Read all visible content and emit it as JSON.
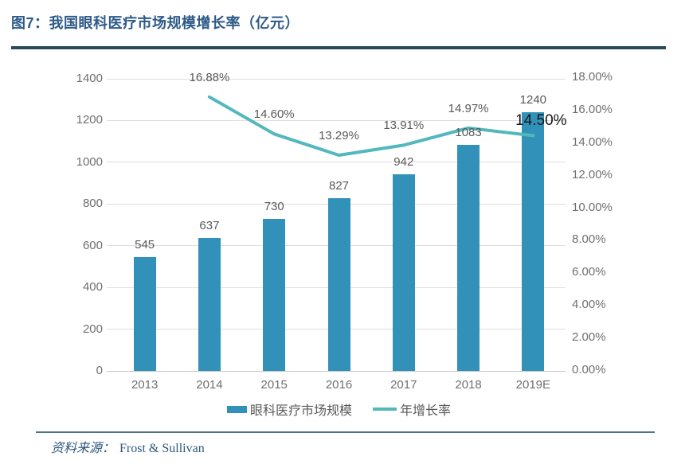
{
  "figure": {
    "title": "图7：我国眼科医疗市场规模增长率（亿元）",
    "source_label": "资料来源：",
    "source_value": "Frost & Sullivan"
  },
  "colors": {
    "title": "#2E5A88",
    "top_rule": "#264B5D",
    "bar": "#3191B9",
    "line": "#53B8BD",
    "grid": "#DEDEDE",
    "axis": "#C6C6C6",
    "tick_label": "#6F6F6F",
    "data_label": "#595959",
    "highlight_label": "#161616",
    "source_text": "#2E577A",
    "source_rule": "#4F7386"
  },
  "chart_data": {
    "type": "bar+line",
    "title": "我国眼科医疗市场规模增长率（亿元）",
    "categories": [
      "2013",
      "2014",
      "2015",
      "2016",
      "2017",
      "2018",
      "2019E"
    ],
    "series": [
      {
        "name": "眼科医疗市场规模",
        "type": "bar",
        "axis": "left",
        "values": [
          545,
          637,
          730,
          827,
          942,
          1083,
          1240
        ],
        "labels": [
          "545",
          "637",
          "730",
          "827",
          "942",
          "1083",
          "1240"
        ]
      },
      {
        "name": "年增长率",
        "type": "line",
        "axis": "right",
        "values": [
          null,
          16.88,
          14.6,
          13.29,
          13.91,
          14.97,
          14.5
        ],
        "labels": [
          null,
          "16.88%",
          "14.60%",
          "13.29%",
          "13.91%",
          "14.97%",
          "14.50%"
        ],
        "highlight_index": 6
      }
    ],
    "left_axis": {
      "min": 0,
      "max": 1400,
      "step": 200,
      "ticks": [
        "0",
        "200",
        "400",
        "600",
        "800",
        "1000",
        "1200",
        "1400"
      ]
    },
    "right_axis": {
      "min": 0,
      "max": 18,
      "step": 2,
      "ticks": [
        "0.00%",
        "2.00%",
        "4.00%",
        "6.00%",
        "8.00%",
        "10.00%",
        "12.00%",
        "14.00%",
        "16.00%",
        "18.00%"
      ]
    },
    "grid": true,
    "legend_position": "bottom"
  }
}
